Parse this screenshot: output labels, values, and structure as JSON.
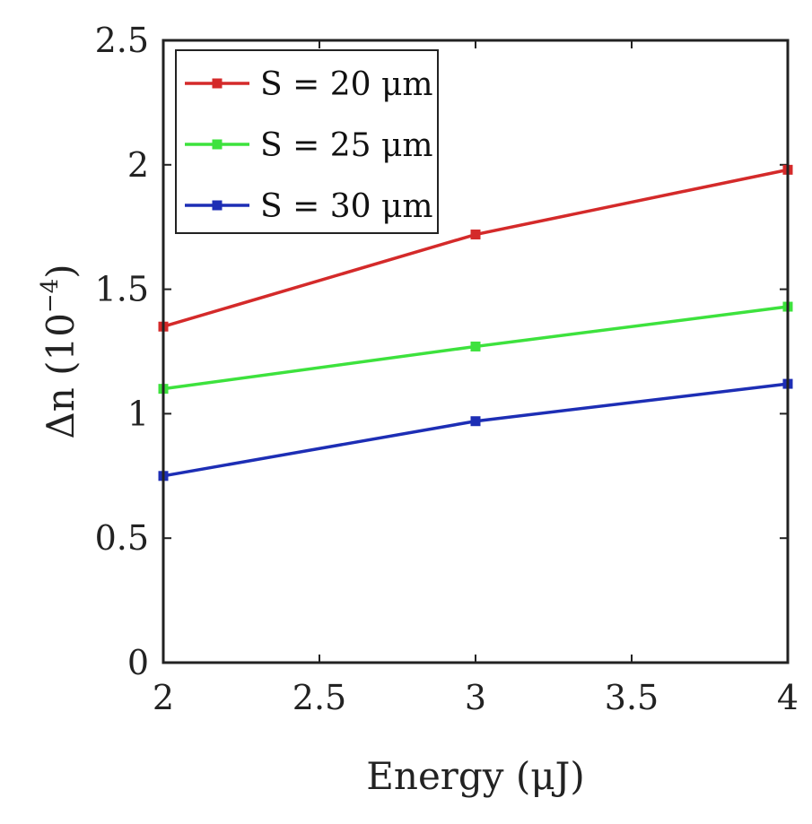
{
  "chart_data": {
    "type": "line",
    "x": [
      2,
      3,
      4
    ],
    "series": [
      {
        "name": "S = 20 μm",
        "color": "#d42a2a",
        "values": [
          1.35,
          1.72,
          1.98
        ]
      },
      {
        "name": "S = 25 μm",
        "color": "#3de23d",
        "values": [
          1.1,
          1.27,
          1.43
        ]
      },
      {
        "name": "S = 30 μm",
        "color": "#1d2eb5",
        "values": [
          0.75,
          0.97,
          1.12
        ]
      }
    ],
    "xlabel": "Energy  (μJ)",
    "ylabel_main": "Δn  (10",
    "ylabel_exp": "−4",
    "ylabel_close": ")",
    "xlim": [
      2,
      4
    ],
    "ylim": [
      0,
      2.5
    ],
    "xticks": [
      2,
      2.5,
      3,
      3.5,
      4
    ],
    "xtick_labels": [
      "2",
      "2.5",
      "3",
      "3.5",
      "4"
    ],
    "yticks": [
      0,
      0.5,
      1,
      1.5,
      2,
      2.5
    ],
    "ytick_labels": [
      "0",
      "0.5",
      "1",
      "1.5",
      "2",
      "2.5"
    ],
    "legend_position": "top-left",
    "grid": false
  }
}
